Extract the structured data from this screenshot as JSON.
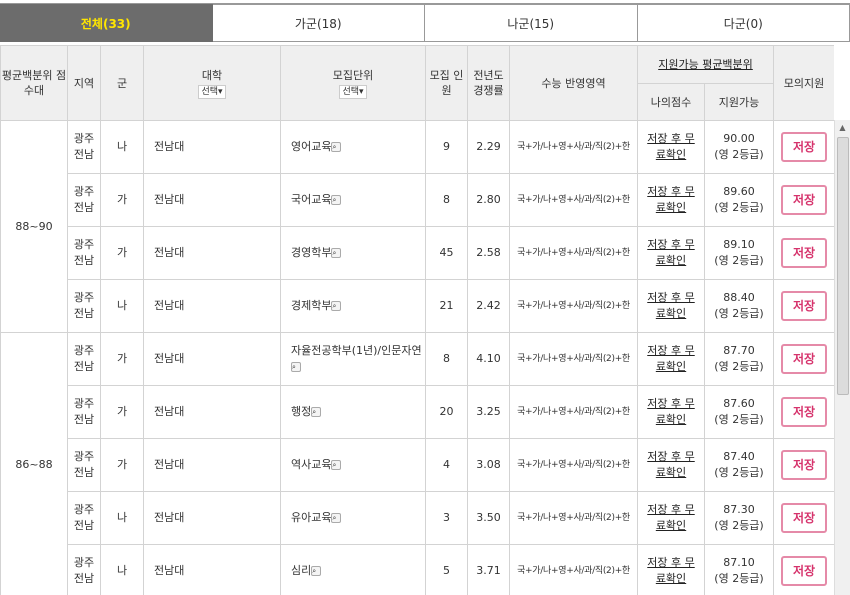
{
  "tabs": [
    {
      "label": "전체(33)",
      "active": true
    },
    {
      "label": "가군(18)"
    },
    {
      "label": "나군(15)"
    },
    {
      "label": "다군(0)"
    }
  ],
  "headers": {
    "score_band": "평균백분위 점수대",
    "region": "지역",
    "group": "군",
    "univ": "대학",
    "univ_select": "선택",
    "unit": "모집단위",
    "unit_select": "선택",
    "quota": "모집 인원",
    "ratio": "전년도 경쟁률",
    "subjects": "수능 반영영역",
    "avail_group": "지원가능 평균백분위",
    "my_score": "나의점수",
    "avail": "지원가능",
    "mock": "모의지원"
  },
  "score_bands": [
    "88~90",
    "86~88"
  ],
  "rows": [
    {
      "region": "광주 전남",
      "group": "나",
      "univ": "전남대",
      "unit": "영어교육",
      "quota": "9",
      "ratio": "2.29",
      "subjects": "국+가/나+영+사/과/직(2)+한",
      "my": "저장 후 무료확인",
      "avail": "90.00",
      "grade": "(영 2등급)",
      "btn": "저장"
    },
    {
      "region": "광주 전남",
      "group": "가",
      "univ": "전남대",
      "unit": "국어교육",
      "quota": "8",
      "ratio": "2.80",
      "subjects": "국+가/나+영+사/과/직(2)+한",
      "my": "저장 후 무료확인",
      "avail": "89.60",
      "grade": "(영 2등급)",
      "btn": "저장"
    },
    {
      "region": "광주 전남",
      "group": "가",
      "univ": "전남대",
      "unit": "경영학부",
      "quota": "45",
      "ratio": "2.58",
      "subjects": "국+가/나+영+사/과/직(2)+한",
      "my": "저장 후 무료확인",
      "avail": "89.10",
      "grade": "(영 2등급)",
      "btn": "저장"
    },
    {
      "region": "광주 전남",
      "group": "나",
      "univ": "전남대",
      "unit": "경제학부",
      "quota": "21",
      "ratio": "2.42",
      "subjects": "국+가/나+영+사/과/직(2)+한",
      "my": "저장 후 무료확인",
      "avail": "88.40",
      "grade": "(영 2등급)",
      "btn": "저장"
    },
    {
      "region": "광주 전남",
      "group": "가",
      "univ": "전남대",
      "unit": "자율전공학부(1년)/인문자연",
      "quota": "8",
      "ratio": "4.10",
      "subjects": "국+가/나+영+사/과/직(2)+한",
      "my": "저장 후 무료확인",
      "avail": "87.70",
      "grade": "(영 2등급)",
      "btn": "저장"
    },
    {
      "region": "광주 전남",
      "group": "가",
      "univ": "전남대",
      "unit": "행정",
      "quota": "20",
      "ratio": "3.25",
      "subjects": "국+가/나+영+사/과/직(2)+한",
      "my": "저장 후 무료확인",
      "avail": "87.60",
      "grade": "(영 2등급)",
      "btn": "저장"
    },
    {
      "region": "광주 전남",
      "group": "가",
      "univ": "전남대",
      "unit": "역사교육",
      "quota": "4",
      "ratio": "3.08",
      "subjects": "국+가/나+영+사/과/직(2)+한",
      "my": "저장 후 무료확인",
      "avail": "87.40",
      "grade": "(영 2등급)",
      "btn": "저장"
    },
    {
      "region": "광주 전남",
      "group": "나",
      "univ": "전남대",
      "unit": "유아교육",
      "quota": "3",
      "ratio": "3.50",
      "subjects": "국+가/나+영+사/과/직(2)+한",
      "my": "저장 후 무료확인",
      "avail": "87.30",
      "grade": "(영 2등급)",
      "btn": "저장"
    },
    {
      "region": "광주 전남",
      "group": "나",
      "univ": "전남대",
      "unit": "심리",
      "quota": "5",
      "ratio": "3.71",
      "subjects": "국+가/나+영+사/과/직(2)+한",
      "my": "저장 후 무료확인",
      "avail": "87.10",
      "grade": "(영 2등급)",
      "btn": "저장"
    }
  ]
}
